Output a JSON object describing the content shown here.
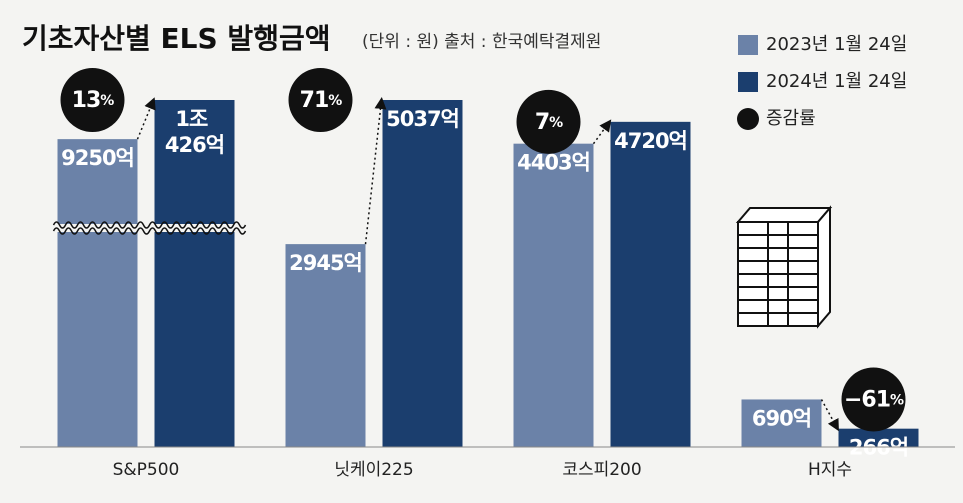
{
  "chart_data": {
    "type": "bar",
    "title": "기초자산별 ELS 발행금액",
    "subtitle": "(단위 : 원)  출처 : 한국예탁결제원",
    "categories": [
      "S&P500",
      "닛케이225",
      "코스피200",
      "H지수"
    ],
    "series": [
      {
        "name": "2023년 1월 24일",
        "color": "#6b82a8",
        "values": [
          9250,
          2945,
          4403,
          690
        ],
        "value_labels": [
          "9250억",
          "2945억",
          "4403억",
          "690억"
        ]
      },
      {
        "name": "2024년 1월 24일",
        "color": "#1b3e6e",
        "values": [
          10426,
          5037,
          4720,
          266
        ],
        "value_labels": [
          "1조 426억",
          "5037억",
          "4720억",
          "266억"
        ]
      }
    ],
    "growth": {
      "name": "증감률",
      "color": "#111111",
      "values": [
        13,
        71,
        7,
        -61
      ],
      "value_labels": [
        "13%",
        "71%",
        "7%",
        "−61%"
      ]
    },
    "axis_break": true
  }
}
